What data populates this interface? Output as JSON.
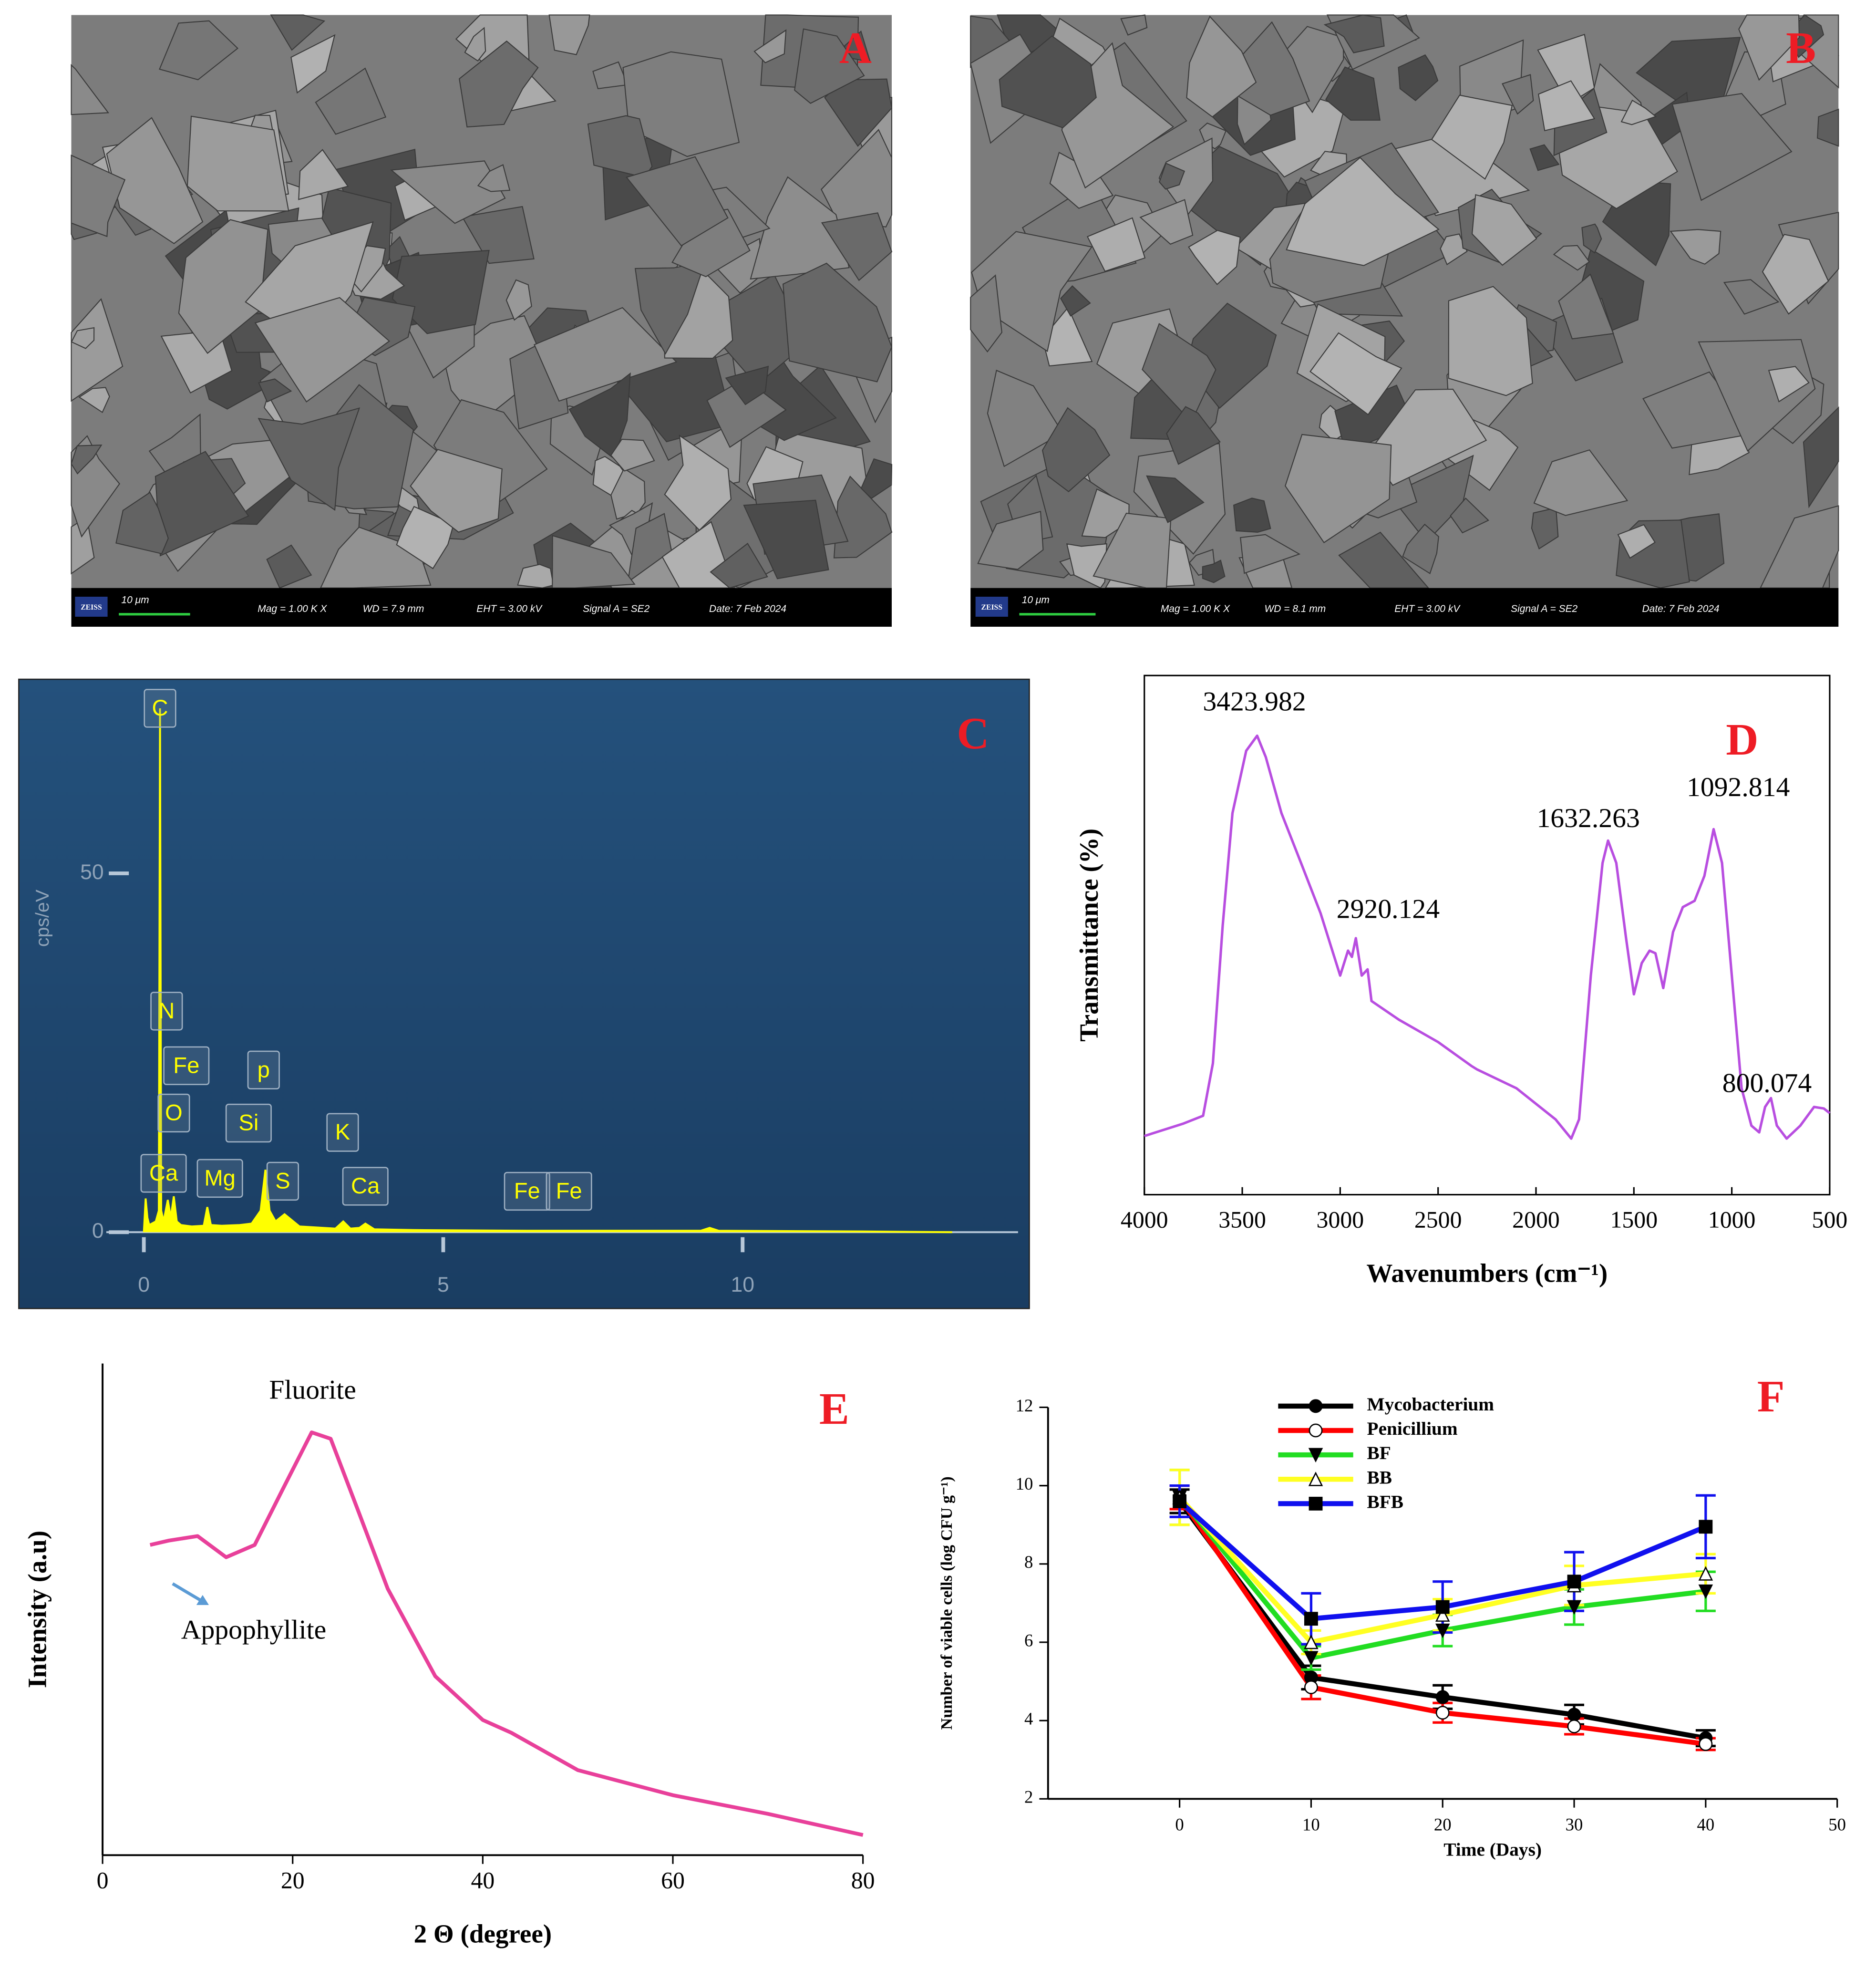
{
  "images": [
    {
      "panel": "A",
      "brand": "ZEISS",
      "scale_bar": "10 μm",
      "mag": "Mag = 1.00 K X",
      "wd": "WD = 7.9 mm",
      "eht": "EHT = 3.00 kV",
      "signal": "Signal A = SE2",
      "date": "Date: 7 Feb 2024"
    },
    {
      "panel": "B",
      "brand": "ZEISS",
      "scale_bar": "10 μm",
      "mag": "Mag = 1.00 K X",
      "wd": "WD = 8.1 mm",
      "eht": "EHT = 3.00 kV",
      "signal": "Signal A = SE2",
      "date": "Date: 7 Feb 2024"
    }
  ],
  "chart_data": [
    {
      "type": "area",
      "panel": "C",
      "ylabel": "cps/eV",
      "color": "#ffff00",
      "x": [
        0,
        0.03,
        0.06,
        0.09,
        0.2,
        0.25,
        0.27,
        0.29,
        0.33,
        0.4,
        0.45,
        0.5,
        0.55,
        0.62,
        0.8,
        1.0,
        1.06,
        1.12,
        1.3,
        1.6,
        1.8,
        1.95,
        2.03,
        2.1,
        2.2,
        2.35,
        2.6,
        3.2,
        3.33,
        3.45,
        3.6,
        3.7,
        3.85,
        4.5,
        6.4,
        7.1,
        9.3,
        9.45,
        9.6,
        12,
        13.5
      ],
      "values": [
        0,
        4.7,
        2,
        1,
        1.5,
        3,
        73,
        3,
        1.5,
        4.5,
        2,
        5,
        1.5,
        1,
        0.8,
        0.9,
        3.5,
        1,
        0.9,
        1,
        1.2,
        3,
        8.7,
        3,
        1.5,
        2.5,
        0.8,
        0.5,
        1.5,
        0.5,
        0.6,
        1.2,
        0.4,
        0.3,
        0.2,
        0.2,
        0.2,
        0.6,
        0.2,
        0.1,
        0
      ],
      "xlim": [
        0,
        14.6
      ],
      "xticks": [
        0,
        5,
        10
      ],
      "ylim": [
        0,
        76
      ],
      "yticks": [
        0,
        50
      ],
      "annotations": [
        {
          "text": "C",
          "x": 0.27,
          "y": 73
        },
        {
          "text": "N",
          "x": 0.38,
          "y": 30.8
        },
        {
          "text": "Fe",
          "x": 0.71,
          "y": 23.2
        },
        {
          "text": "O",
          "x": 0.5,
          "y": 16.6
        },
        {
          "text": "Ca",
          "x": 0.33,
          "y": 8.2
        },
        {
          "text": "Mg",
          "x": 1.27,
          "y": 7.5
        },
        {
          "text": "Si",
          "x": 1.75,
          "y": 15.2
        },
        {
          "text": "p",
          "x": 2.0,
          "y": 22.6
        },
        {
          "text": "S",
          "x": 2.32,
          "y": 7.1
        },
        {
          "text": "K",
          "x": 3.32,
          "y": 13.9
        },
        {
          "text": "Ca",
          "x": 3.7,
          "y": 6.4
        },
        {
          "text": "Fe",
          "x": 6.4,
          "y": 5.7
        },
        {
          "text": "Fe",
          "x": 7.1,
          "y": 5.7
        }
      ]
    },
    {
      "type": "line",
      "panel": "D",
      "ylabel": "Transmittance (%)",
      "xlabel": "Wavenumbers (cm⁻¹)",
      "color": "#b84ee0",
      "x": [
        4000,
        3800,
        3700,
        3650,
        3600,
        3550,
        3480,
        3424,
        3380,
        3300,
        3200,
        3100,
        3000,
        2960,
        2940,
        2920,
        2890,
        2860,
        2840,
        2700,
        2500,
        2330,
        2300,
        2100,
        1900,
        1820,
        1780,
        1720,
        1660,
        1632,
        1590,
        1540,
        1500,
        1460,
        1420,
        1390,
        1350,
        1300,
        1250,
        1190,
        1140,
        1093,
        1050,
        1000,
        950,
        900,
        860,
        830,
        800,
        770,
        720,
        650,
        580,
        530,
        500
      ],
      "values": [
        11.3,
        13.7,
        15.2,
        25.3,
        51.8,
        73.5,
        85.5,
        88.4,
        84.3,
        73.5,
        63.9,
        54.2,
        42.2,
        47.0,
        45.8,
        49.4,
        42.2,
        43.4,
        37.3,
        33.7,
        29.4,
        24.8,
        24.1,
        20.5,
        14.5,
        10.8,
        14.5,
        42.2,
        63.9,
        68.2,
        63.9,
        49.4,
        38.6,
        44.6,
        47.0,
        46.5,
        39.8,
        50.6,
        55.4,
        56.6,
        61.4,
        70.4,
        63.9,
        42.2,
        20.5,
        13.3,
        12.0,
        16.9,
        18.6,
        13.3,
        10.8,
        13.3,
        16.9,
        16.6,
        15.7
      ],
      "xlim": [
        4000,
        500
      ],
      "xticks": [
        4000,
        3500,
        3000,
        2500,
        2000,
        1500,
        1000,
        500
      ],
      "ylim": [
        0,
        100
      ],
      "annotations": [
        {
          "text": "3423.982",
          "x": 3438,
          "y": 94.5
        },
        {
          "text": "2920.124",
          "x": 2755,
          "y": 54.5
        },
        {
          "text": "1632.263",
          "x": 1733,
          "y": 72
        },
        {
          "text": "1092.814",
          "x": 967,
          "y": 78
        },
        {
          "text": "800.074",
          "x": 820,
          "y": 21
        }
      ]
    },
    {
      "type": "line",
      "panel": "E",
      "ylabel": "Intensity (a.u)",
      "xlabel": "2 Θ (degree)",
      "color": "#e8409a",
      "x": [
        5,
        7,
        10,
        13,
        16,
        19,
        22,
        24,
        27,
        30,
        35,
        40,
        43,
        50,
        60,
        70,
        80
      ],
      "values": [
        63.1,
        64.0,
        64.9,
        60.6,
        63.1,
        74.6,
        86.0,
        84.7,
        69.5,
        54.2,
        36.4,
        27.5,
        24.9,
        17.3,
        12.2,
        8.4,
        4.1
      ],
      "xlim": [
        0,
        80
      ],
      "xticks": [
        0,
        20,
        40,
        60,
        80
      ],
      "ylim": [
        0,
        100
      ],
      "annotations": [
        {
          "text": "Fluorite",
          "x": 22.1,
          "y": 94.1
        },
        {
          "text": "Appophyllite",
          "x": 15.9,
          "y": 45.3
        }
      ]
    },
    {
      "type": "line",
      "panel": "F",
      "ylabel": "Number of viable cells (log CFU g⁻¹)",
      "xlabel": "Time (Days)",
      "x": [
        0,
        10,
        20,
        30,
        40
      ],
      "xlim": [
        -10,
        50
      ],
      "xticks": [
        0,
        10,
        20,
        30,
        40,
        50
      ],
      "ylim": [
        2,
        12
      ],
      "yticks": [
        2,
        4,
        6,
        8,
        10,
        12
      ],
      "legend": "top",
      "series": [
        {
          "name": "Mycobacterium",
          "color": "#000000",
          "marker": "circle",
          "values": [
            9.6,
            5.1,
            4.6,
            4.15,
            3.55
          ],
          "errors": [
            0.3,
            0.3,
            0.3,
            0.25,
            0.2
          ]
        },
        {
          "name": "Penicillium",
          "color": "#ff0000",
          "marker": "open-circle",
          "values": [
            9.7,
            4.85,
            4.2,
            3.85,
            3.4
          ],
          "errors": [
            0.3,
            0.3,
            0.25,
            0.2,
            0.15
          ]
        },
        {
          "name": "BF",
          "color": "#22dd22",
          "marker": "triangle-down",
          "values": [
            9.7,
            5.6,
            6.3,
            6.9,
            7.3
          ],
          "errors": [
            0.7,
            0.3,
            0.4,
            0.45,
            0.5
          ]
        },
        {
          "name": "BB",
          "color": "#ffff22",
          "marker": "open-triangle",
          "values": [
            9.7,
            6.0,
            6.7,
            7.45,
            7.75
          ],
          "errors": [
            0.7,
            0.3,
            0.4,
            0.5,
            0.5
          ]
        },
        {
          "name": "BFB",
          "color": "#1010ee",
          "marker": "square",
          "values": [
            9.6,
            6.6,
            6.9,
            7.55,
            8.95
          ],
          "errors": [
            0.4,
            0.65,
            0.65,
            0.75,
            0.8
          ]
        }
      ]
    }
  ]
}
